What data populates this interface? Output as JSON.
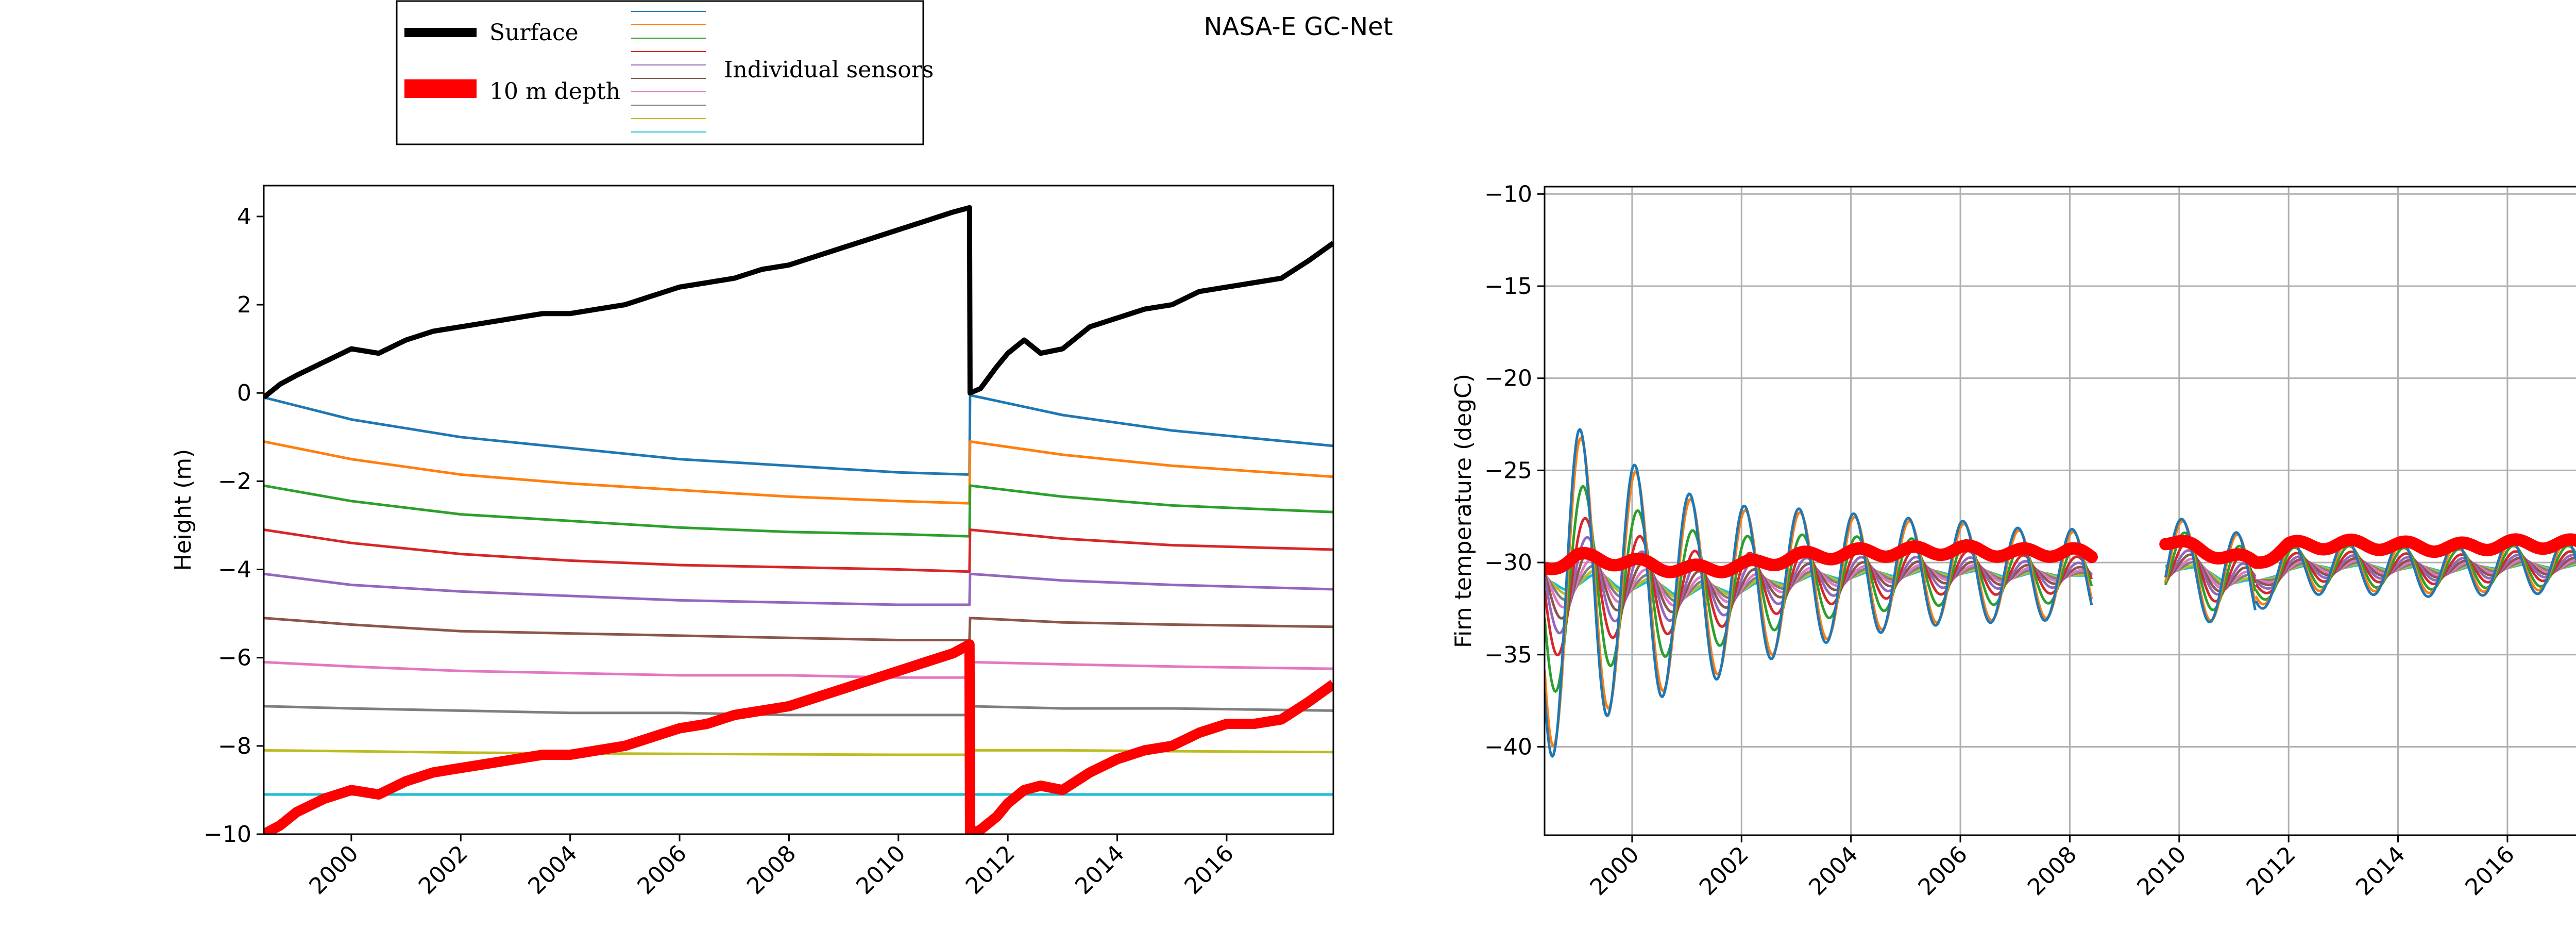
{
  "figure": {
    "title": "NASA-E GC-Net"
  },
  "legend": {
    "surface_label": "Surface",
    "depth_label": "10 m depth",
    "sensors_label": "Individual sensors"
  },
  "colors": {
    "surface": "#000000",
    "depth10": "#ff0000",
    "sensors": [
      "#1f77b4",
      "#ff7f0e",
      "#2ca02c",
      "#d62728",
      "#9467bd",
      "#8c564b",
      "#e377c2",
      "#7f7f7f",
      "#bcbd22",
      "#17becf"
    ]
  },
  "chart_data": [
    {
      "type": "line",
      "panel": "left",
      "xlabel": "",
      "ylabel": "Height (m)",
      "xlim": [
        1998.4,
        2017.95
      ],
      "ylim": [
        -10,
        4.7
      ],
      "yticks": [
        4,
        2,
        0,
        -2,
        -4,
        -6,
        -8,
        -10
      ],
      "yticklabels": [
        "4",
        "2",
        "0",
        "−2",
        "−4",
        "−6",
        "−8",
        "−10"
      ],
      "xticks": [
        2000,
        2002,
        2004,
        2006,
        2008,
        2010,
        2012,
        2014,
        2016
      ],
      "xticklabels": [
        "2000",
        "2002",
        "2004",
        "2006",
        "2008",
        "2010",
        "2012",
        "2014",
        "2016"
      ],
      "grid": false,
      "series": [
        {
          "key": "surface",
          "x": [
            1998.4,
            1998.7,
            1999.0,
            1999.5,
            2000.0,
            2000.5,
            2001.0,
            2001.5,
            2002.0,
            2002.5,
            2003.0,
            2003.5,
            2004.0,
            2004.5,
            2005.0,
            2005.5,
            2006.0,
            2006.5,
            2007.0,
            2007.5,
            2008.0,
            2008.5,
            2009.0,
            2009.5,
            2010.0,
            2010.5,
            2011.0,
            2011.3,
            2011.31,
            2011.5,
            2011.8,
            2012.0,
            2012.3,
            2012.6,
            2013.0,
            2013.5,
            2014.0,
            2014.5,
            2015.0,
            2015.5,
            2016.0,
            2016.5,
            2017.0,
            2017.5,
            2017.95
          ],
          "y": [
            -0.1,
            0.2,
            0.4,
            0.7,
            1.0,
            0.9,
            1.2,
            1.4,
            1.5,
            1.6,
            1.7,
            1.8,
            1.8,
            1.9,
            2.0,
            2.2,
            2.4,
            2.5,
            2.6,
            2.8,
            2.9,
            3.1,
            3.3,
            3.5,
            3.7,
            3.9,
            4.1,
            4.2,
            0.0,
            0.1,
            0.6,
            0.9,
            1.2,
            0.9,
            1.0,
            1.5,
            1.7,
            1.9,
            2.0,
            2.3,
            2.4,
            2.5,
            2.6,
            3.0,
            3.4
          ]
        },
        {
          "key": "depth10",
          "x": [
            1998.4,
            1998.7,
            1999.0,
            1999.5,
            2000.0,
            2000.5,
            2001.0,
            2001.5,
            2002.0,
            2002.5,
            2003.0,
            2003.5,
            2004.0,
            2004.5,
            2005.0,
            2005.5,
            2006.0,
            2006.5,
            2007.0,
            2007.5,
            2008.0,
            2008.5,
            2009.0,
            2009.5,
            2010.0,
            2010.5,
            2011.0,
            2011.3,
            2011.31,
            2011.5,
            2011.8,
            2012.0,
            2012.3,
            2012.6,
            2013.0,
            2013.5,
            2014.0,
            2014.5,
            2015.0,
            2015.5,
            2016.0,
            2016.5,
            2017.0,
            2017.5,
            2017.95
          ],
          "y": [
            -10.0,
            -9.8,
            -9.5,
            -9.2,
            -9.0,
            -9.1,
            -8.8,
            -8.6,
            -8.5,
            -8.4,
            -8.3,
            -8.2,
            -8.2,
            -8.1,
            -8.0,
            -7.8,
            -7.6,
            -7.5,
            -7.3,
            -7.2,
            -7.1,
            -6.9,
            -6.7,
            -6.5,
            -6.3,
            -6.1,
            -5.9,
            -5.7,
            -10.0,
            -9.9,
            -9.6,
            -9.3,
            -9.0,
            -8.9,
            -9.0,
            -8.6,
            -8.3,
            -8.1,
            -8.0,
            -7.7,
            -7.5,
            -7.5,
            -7.4,
            -7.0,
            -6.6
          ]
        },
        {
          "key": "sensor1",
          "x": [
            1998.4,
            2000.0,
            2002.0,
            2004.0,
            2006.0,
            2008.0,
            2010.0,
            2011.3,
            2011.31,
            2013.0,
            2015.0,
            2017.95
          ],
          "y": [
            -0.1,
            -0.6,
            -1.0,
            -1.25,
            -1.5,
            -1.65,
            -1.8,
            -1.85,
            -0.05,
            -0.5,
            -0.85,
            -1.2
          ]
        },
        {
          "key": "sensor2",
          "x": [
            1998.4,
            2000.0,
            2002.0,
            2004.0,
            2006.0,
            2008.0,
            2010.0,
            2011.3,
            2011.31,
            2013.0,
            2015.0,
            2017.95
          ],
          "y": [
            -1.1,
            -1.5,
            -1.85,
            -2.05,
            -2.2,
            -2.35,
            -2.45,
            -2.5,
            -1.1,
            -1.4,
            -1.65,
            -1.9
          ]
        },
        {
          "key": "sensor3",
          "x": [
            1998.4,
            2000.0,
            2002.0,
            2004.0,
            2006.0,
            2008.0,
            2010.0,
            2011.3,
            2011.31,
            2013.0,
            2015.0,
            2017.95
          ],
          "y": [
            -2.1,
            -2.45,
            -2.75,
            -2.9,
            -3.05,
            -3.15,
            -3.2,
            -3.25,
            -2.1,
            -2.35,
            -2.55,
            -2.7
          ]
        },
        {
          "key": "sensor4",
          "x": [
            1998.4,
            2000.0,
            2002.0,
            2004.0,
            2006.0,
            2008.0,
            2010.0,
            2011.3,
            2011.31,
            2013.0,
            2015.0,
            2017.95
          ],
          "y": [
            -3.1,
            -3.4,
            -3.65,
            -3.8,
            -3.9,
            -3.95,
            -4.0,
            -4.05,
            -3.1,
            -3.3,
            -3.45,
            -3.55
          ]
        },
        {
          "key": "sensor5",
          "x": [
            1998.4,
            2000.0,
            2002.0,
            2004.0,
            2006.0,
            2008.0,
            2010.0,
            2011.3,
            2011.31,
            2013.0,
            2015.0,
            2017.95
          ],
          "y": [
            -4.1,
            -4.35,
            -4.5,
            -4.6,
            -4.7,
            -4.75,
            -4.8,
            -4.8,
            -4.1,
            -4.25,
            -4.35,
            -4.45
          ]
        },
        {
          "key": "sensor6",
          "x": [
            1998.4,
            2000.0,
            2002.0,
            2004.0,
            2006.0,
            2008.0,
            2010.0,
            2011.3,
            2011.31,
            2013.0,
            2015.0,
            2017.95
          ],
          "y": [
            -5.1,
            -5.25,
            -5.4,
            -5.45,
            -5.5,
            -5.55,
            -5.6,
            -5.6,
            -5.1,
            -5.2,
            -5.25,
            -5.3
          ]
        },
        {
          "key": "sensor7",
          "x": [
            1998.4,
            2000.0,
            2002.0,
            2004.0,
            2006.0,
            2008.0,
            2010.0,
            2011.3,
            2011.31,
            2013.0,
            2015.0,
            2017.95
          ],
          "y": [
            -6.1,
            -6.2,
            -6.3,
            -6.35,
            -6.4,
            -6.4,
            -6.45,
            -6.45,
            -6.1,
            -6.15,
            -6.2,
            -6.25
          ]
        },
        {
          "key": "sensor8",
          "x": [
            1998.4,
            2000.0,
            2002.0,
            2004.0,
            2006.0,
            2008.0,
            2010.0,
            2011.3,
            2011.31,
            2013.0,
            2015.0,
            2017.95
          ],
          "y": [
            -7.1,
            -7.15,
            -7.2,
            -7.25,
            -7.25,
            -7.3,
            -7.3,
            -7.3,
            -7.1,
            -7.15,
            -7.15,
            -7.2
          ]
        },
        {
          "key": "sensor9",
          "x": [
            1998.4,
            2000.0,
            2002.0,
            2004.0,
            2006.0,
            2008.0,
            2010.0,
            2011.3,
            2011.31,
            2013.0,
            2015.0,
            2017.95
          ],
          "y": [
            -8.1,
            -8.12,
            -8.15,
            -8.17,
            -8.18,
            -8.19,
            -8.2,
            -8.2,
            -8.1,
            -8.1,
            -8.12,
            -8.14
          ]
        },
        {
          "key": "sensor10",
          "x": [
            1998.4,
            2005.0,
            2011.3,
            2011.31,
            2017.95
          ],
          "y": [
            -9.1,
            -9.1,
            -9.1,
            -9.1,
            -9.1
          ]
        }
      ]
    },
    {
      "type": "line",
      "panel": "right",
      "xlabel": "",
      "ylabel": "Firn temperature (degC)",
      "xlim": [
        1998.4,
        2017.95
      ],
      "ylim": [
        -44.8,
        -9.6
      ],
      "yticks": [
        -10,
        -15,
        -20,
        -25,
        -30,
        -35,
        -40
      ],
      "yticklabels": [
        "−10",
        "−15",
        "−20",
        "−25",
        "−30",
        "−35",
        "−40"
      ],
      "xticks": [
        2000,
        2002,
        2004,
        2006,
        2008,
        2010,
        2012,
        2014,
        2016
      ],
      "xticklabels": [
        "2000",
        "2002",
        "2004",
        "2006",
        "2008",
        "2010",
        "2012",
        "2014",
        "2016"
      ],
      "grid": true,
      "segments": [
        [
          1998.4,
          2008.4
        ],
        [
          2009.75,
          2011.4
        ],
        [
          2011.4,
          2017.95
        ]
      ],
      "sensor_amplitudes": [
        [
          9.5,
          2.6,
          1.5
        ],
        [
          9.0,
          2.5,
          1.3
        ],
        [
          6.0,
          1.9,
          1.1
        ],
        [
          4.0,
          1.4,
          0.8
        ],
        [
          2.8,
          1.0,
          0.6
        ],
        [
          2.0,
          0.8,
          0.45
        ],
        [
          1.4,
          0.6,
          0.35
        ],
        [
          1.0,
          0.45,
          0.25
        ],
        [
          0.7,
          0.3,
          0.18
        ],
        [
          0.5,
          0.22,
          0.12
        ]
      ],
      "sensor_phase_lag_years": [
        0.0,
        0.02,
        0.06,
        0.1,
        0.14,
        0.18,
        0.22,
        0.26,
        0.3,
        0.34
      ],
      "ten_m_depth": {
        "x": [
          1998.4,
          1999.0,
          2000.0,
          2001.0,
          2002.0,
          2003.0,
          2004.0,
          2005.0,
          2006.0,
          2007.0,
          2008.0,
          2008.4,
          2009.75,
          2010.5,
          2011.4,
          2012.0,
          2013.0,
          2014.0,
          2015.0,
          2016.0,
          2017.0,
          2017.95
        ],
        "y": [
          -30.3,
          -29.7,
          -30.0,
          -30.4,
          -30.2,
          -29.7,
          -29.5,
          -29.4,
          -29.3,
          -29.5,
          -29.4,
          -29.7,
          -28.8,
          -29.4,
          -30.0,
          -29.1,
          -29.0,
          -29.1,
          -29.2,
          -29.0,
          -29.0,
          -29.0
        ]
      }
    }
  ]
}
